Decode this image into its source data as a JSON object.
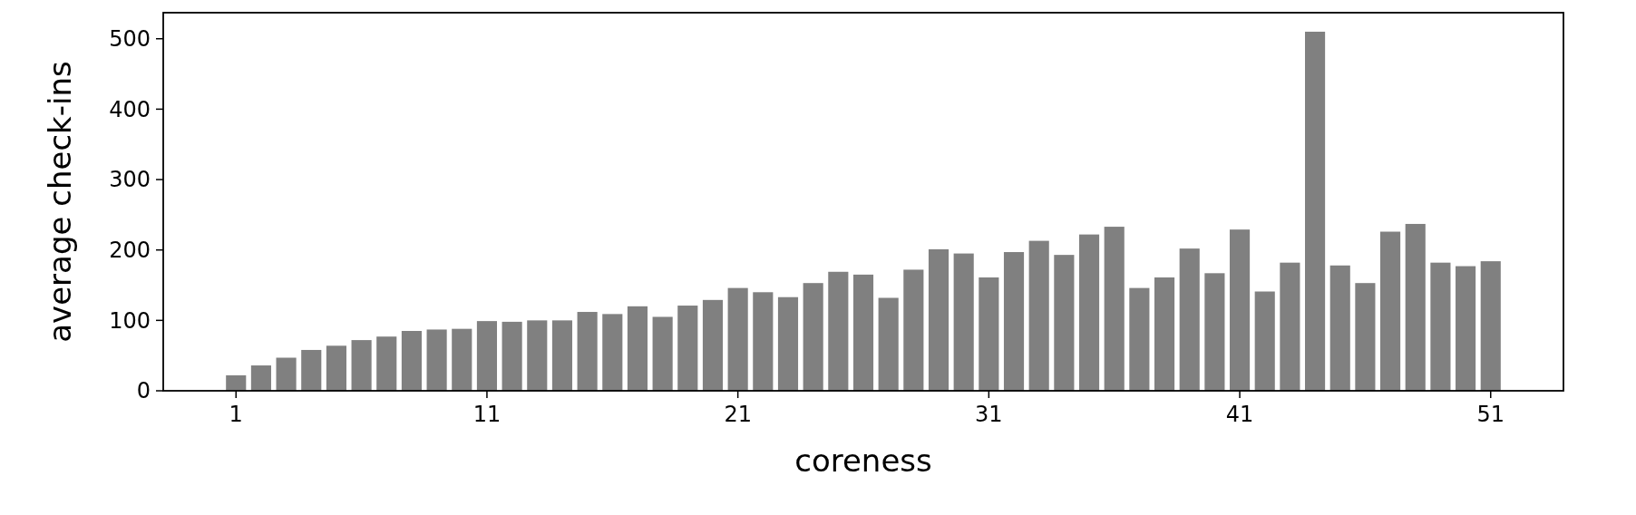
{
  "chart_data": {
    "type": "bar",
    "xlabel": "coreness",
    "ylabel": "average check-ins",
    "x": [
      1,
      2,
      3,
      4,
      5,
      6,
      7,
      8,
      9,
      10,
      11,
      12,
      13,
      14,
      15,
      16,
      17,
      18,
      19,
      20,
      21,
      22,
      23,
      24,
      25,
      26,
      27,
      28,
      29,
      30,
      31,
      32,
      33,
      34,
      35,
      36,
      37,
      38,
      39,
      40,
      41,
      42,
      43,
      44,
      45,
      46,
      47,
      48,
      49,
      50,
      51
    ],
    "values": [
      22,
      36,
      47,
      58,
      64,
      72,
      77,
      85,
      87,
      88,
      99,
      98,
      100,
      100,
      112,
      109,
      120,
      105,
      121,
      129,
      146,
      140,
      133,
      153,
      169,
      165,
      132,
      172,
      201,
      195,
      161,
      197,
      213,
      193,
      222,
      233,
      146,
      161,
      202,
      167,
      229,
      141,
      182,
      510,
      178,
      153,
      226,
      237,
      182,
      177,
      184
    ],
    "color": "#808080",
    "xlim": [
      -1.9,
      53.9
    ],
    "xticks": [
      1,
      11,
      21,
      31,
      41,
      51
    ],
    "ylim": [
      0,
      537
    ],
    "yticks": [
      0,
      100,
      200,
      300,
      400,
      500
    ]
  }
}
